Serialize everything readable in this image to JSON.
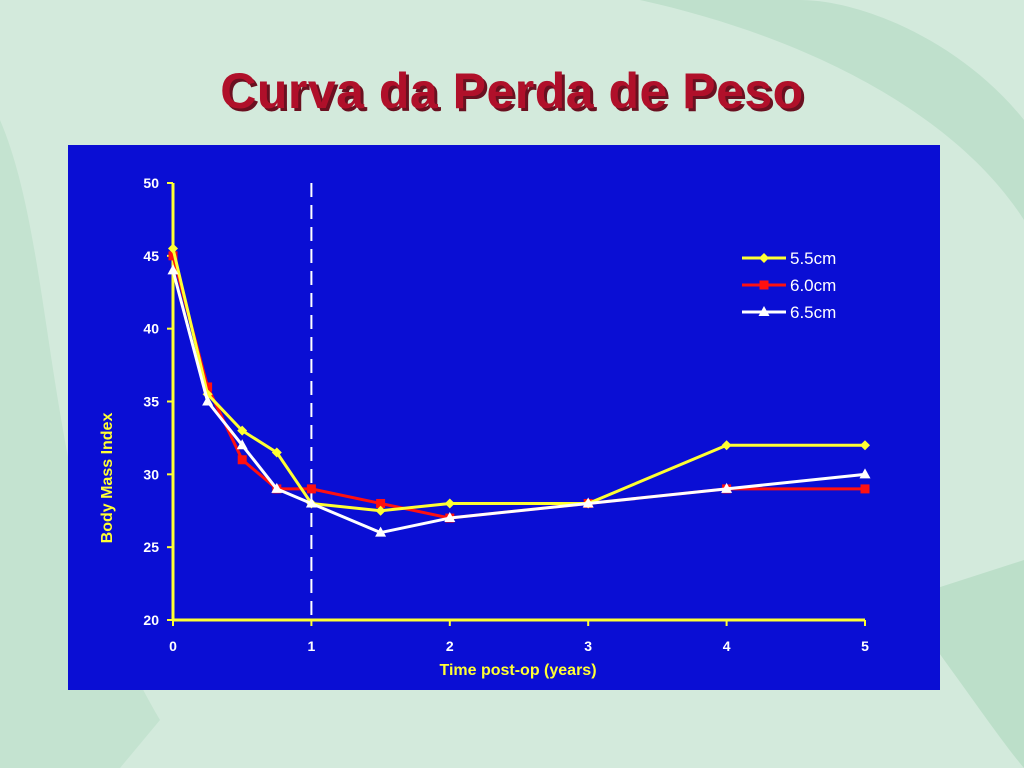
{
  "slide": {
    "title": "Curva da Perda de Peso"
  },
  "colors": {
    "background": "#d3eadc",
    "panel": "#0a0ed4",
    "axis": "#ffff33",
    "title": "#b0102a"
  },
  "chart_data": {
    "type": "line",
    "title": "",
    "xlabel": "Time post-op (years)",
    "ylabel": "Body Mass Index",
    "xlim": [
      0,
      5
    ],
    "ylim": [
      20,
      50
    ],
    "xticks": [
      0,
      1,
      2,
      3,
      4,
      5
    ],
    "yticks": [
      20,
      25,
      30,
      35,
      40,
      45,
      50
    ],
    "grid": false,
    "legend_position": "top-right",
    "reference_line": {
      "x": 1,
      "style": "dashed",
      "color": "#ffffff"
    },
    "series": [
      {
        "name": "5.5cm",
        "color": "#ffff33",
        "marker": "diamond",
        "points": [
          [
            0,
            45.5
          ],
          [
            0.25,
            35.5
          ],
          [
            0.5,
            33
          ],
          [
            0.75,
            31.5
          ],
          [
            1,
            28
          ],
          [
            1.5,
            27.5
          ],
          [
            2,
            28
          ],
          [
            3,
            28
          ],
          [
            4,
            32
          ],
          [
            5,
            32
          ]
        ]
      },
      {
        "name": "6.0cm",
        "color": "#ff1010",
        "marker": "square",
        "points": [
          [
            0,
            45
          ],
          [
            0.25,
            36
          ],
          [
            0.5,
            31
          ],
          [
            0.75,
            29
          ],
          [
            1,
            29
          ],
          [
            1.5,
            28
          ],
          [
            2,
            27
          ],
          [
            3,
            28
          ],
          [
            4,
            29
          ],
          [
            5,
            29
          ]
        ]
      },
      {
        "name": "6.5cm",
        "color": "#ffffff",
        "marker": "triangle",
        "points": [
          [
            0,
            44
          ],
          [
            0.25,
            35
          ],
          [
            0.5,
            32
          ],
          [
            0.75,
            29
          ],
          [
            1,
            28
          ],
          [
            1.5,
            26
          ],
          [
            2,
            27
          ],
          [
            3,
            28
          ],
          [
            4,
            29
          ],
          [
            5,
            30
          ]
        ]
      }
    ]
  }
}
